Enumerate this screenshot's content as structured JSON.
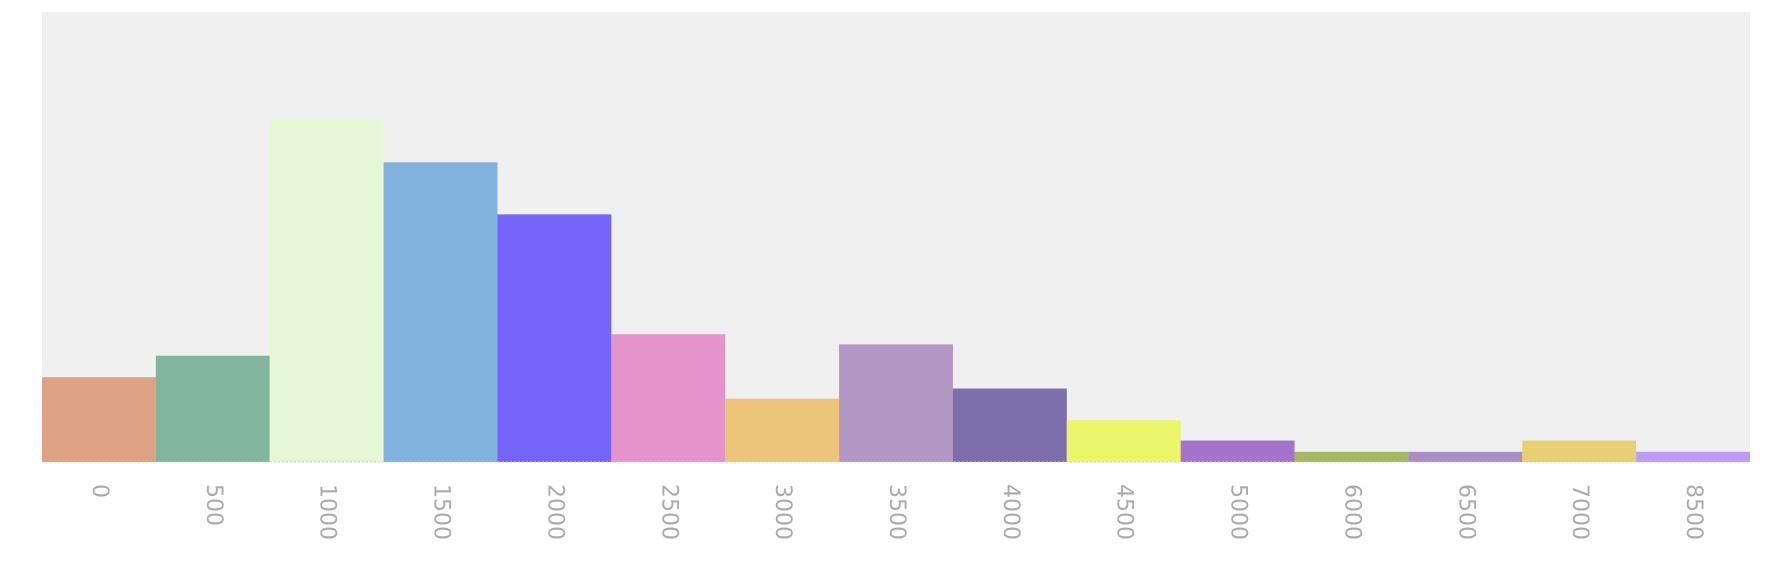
{
  "chart_data": {
    "type": "bar",
    "categories": [
      "0",
      "500",
      "1000",
      "1500",
      "2000",
      "2500",
      "3000",
      "3500",
      "4000",
      "4500",
      "5000",
      "6000",
      "6500",
      "7000",
      "8500"
    ],
    "values": [
      75,
      94,
      303,
      265,
      219,
      113,
      56,
      104,
      65,
      37,
      19,
      9,
      9,
      19,
      9
    ],
    "colors": [
      "#dda184",
      "#82b59e",
      "#e5f7d5",
      "#80b2dd",
      "#7665fb",
      "#e493cb",
      "#edc57a",
      "#b296c4",
      "#7d6fab",
      "#ebf76b",
      "#a673cc",
      "#a5b964",
      "#a98dc4",
      "#e8d174",
      "#bc9cf7"
    ],
    "ylim": [
      0,
      398
    ]
  }
}
